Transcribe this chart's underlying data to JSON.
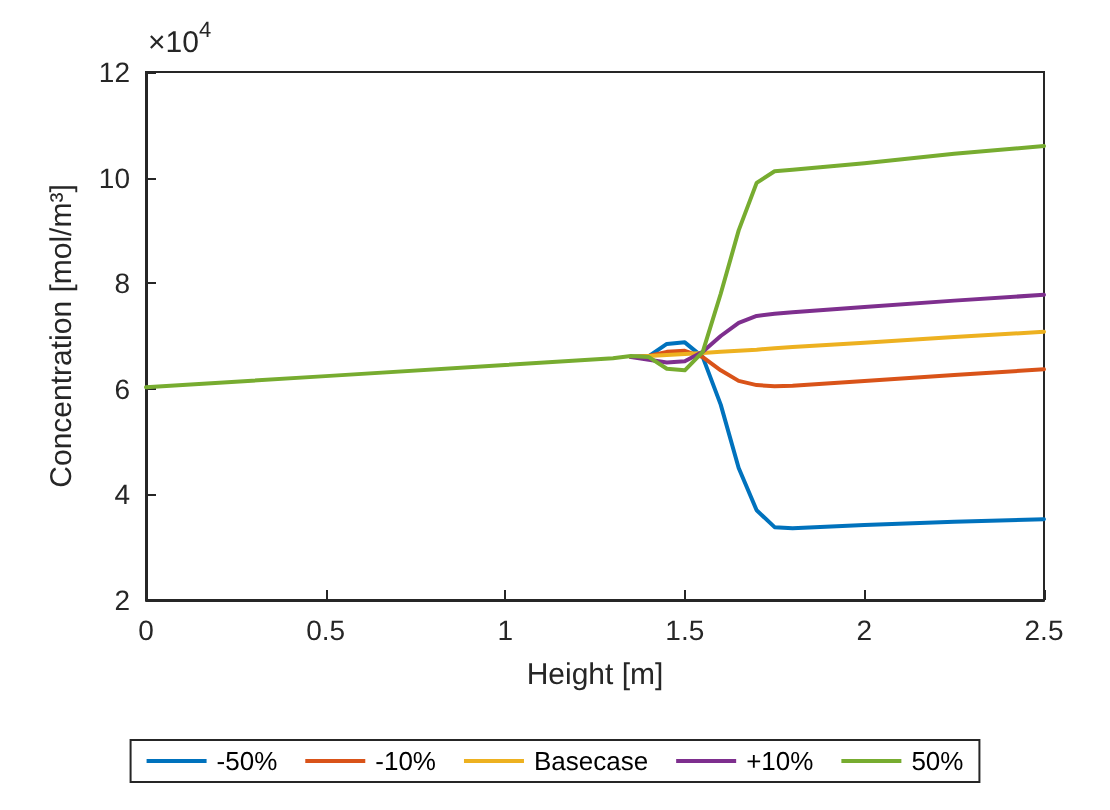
{
  "chart_data": {
    "type": "line",
    "xlabel": "Height [m]",
    "ylabel": "Concentration [mol/m³]",
    "annotations": [
      "×10$^{4}$"
    ],
    "x": [
      0,
      0.5,
      1,
      1.3,
      1.35,
      1.4,
      1.45,
      1.5,
      1.55,
      1.6,
      1.65,
      1.7,
      1.75,
      1.8,
      2,
      2.25,
      2.5
    ],
    "series": [
      {
        "name": "-50%",
        "color": "#0072bd",
        "values": [
          null,
          null,
          null,
          null,
          6.6,
          6.62,
          6.85,
          6.88,
          6.6,
          5.7,
          4.5,
          3.7,
          3.38,
          3.36,
          3.42,
          3.48,
          3.53
        ]
      },
      {
        "name": "-10%",
        "color": "#d95319",
        "values": [
          null,
          null,
          null,
          null,
          6.6,
          6.62,
          6.7,
          6.72,
          6.6,
          6.35,
          6.15,
          6.07,
          6.05,
          6.06,
          6.15,
          6.26,
          6.37
        ]
      },
      {
        "name": "Basecase",
        "color": "#edb120",
        "values": [
          null,
          null,
          null,
          null,
          6.6,
          6.62,
          6.64,
          6.66,
          6.68,
          6.7,
          6.72,
          6.74,
          6.77,
          6.79,
          6.87,
          6.98,
          7.08
        ]
      },
      {
        "name": "+10%",
        "color": "#7e2f8e",
        "values": [
          null,
          null,
          null,
          null,
          6.6,
          6.55,
          6.5,
          6.52,
          6.7,
          7.0,
          7.25,
          7.38,
          7.42,
          7.45,
          7.55,
          7.67,
          7.78
        ]
      },
      {
        "name": "50%",
        "color": "#77ac30",
        "values": [
          6.03,
          6.24,
          6.45,
          6.58,
          6.62,
          6.6,
          6.38,
          6.35,
          6.7,
          7.8,
          9.0,
          9.9,
          10.12,
          10.15,
          10.27,
          10.45,
          10.6
        ]
      }
    ],
    "xlim": [
      0,
      2.5
    ],
    "xticks": [
      0,
      0.5,
      1,
      1.5,
      2,
      2.5
    ],
    "ylim": [
      2,
      12
    ],
    "yticks": [
      2,
      4,
      6,
      8,
      10,
      12
    ],
    "grid": false,
    "legend": "bottom",
    "marker": "none",
    "line_style": "solid"
  }
}
